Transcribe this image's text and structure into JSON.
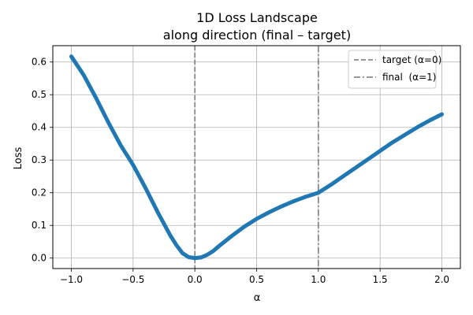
{
  "chart_data": {
    "type": "line",
    "title": "1D Loss Landscape",
    "subtitle": "along direction (final – target)",
    "xlabel": "α",
    "ylabel": "Loss",
    "xlim": [
      -1.15,
      2.15
    ],
    "ylim": [
      -0.032,
      0.65
    ],
    "xticks": [
      -1.0,
      -0.5,
      0.0,
      0.5,
      1.0,
      1.5,
      2.0
    ],
    "xtick_labels": [
      "−1.0",
      "−0.5",
      "0.0",
      "0.5",
      "1.0",
      "1.5",
      "2.0"
    ],
    "yticks": [
      0.0,
      0.1,
      0.2,
      0.3,
      0.4,
      0.5,
      0.6
    ],
    "ytick_labels": [
      "0.0",
      "0.1",
      "0.2",
      "0.3",
      "0.4",
      "0.5",
      "0.6"
    ],
    "grid": true,
    "legend_position": "top-right",
    "series": [
      {
        "color": "#1f77b4",
        "x": [
          -1.0,
          -0.9,
          -0.8,
          -0.7,
          -0.6,
          -0.5,
          -0.4,
          -0.3,
          -0.2,
          -0.15,
          -0.1,
          -0.05,
          0.0,
          0.05,
          0.1,
          0.15,
          0.2,
          0.3,
          0.4,
          0.5,
          0.6,
          0.7,
          0.8,
          0.9,
          1.0,
          1.1,
          1.2,
          1.3,
          1.4,
          1.5,
          1.6,
          1.7,
          1.8,
          1.9,
          2.0
        ],
        "y": [
          0.617,
          0.56,
          0.49,
          0.415,
          0.345,
          0.285,
          0.215,
          0.14,
          0.07,
          0.04,
          0.015,
          0.003,
          0.0,
          0.002,
          0.01,
          0.022,
          0.038,
          0.068,
          0.096,
          0.12,
          0.14,
          0.158,
          0.174,
          0.188,
          0.2,
          0.224,
          0.25,
          0.276,
          0.302,
          0.328,
          0.354,
          0.377,
          0.4,
          0.421,
          0.44
        ]
      }
    ],
    "vlines": [
      {
        "x": 0,
        "label": "target (α=0)",
        "color": "#777777",
        "style": "dashed"
      },
      {
        "x": 1,
        "label": "final  (α=1)",
        "color": "#777777",
        "style": "dashdot"
      }
    ]
  }
}
